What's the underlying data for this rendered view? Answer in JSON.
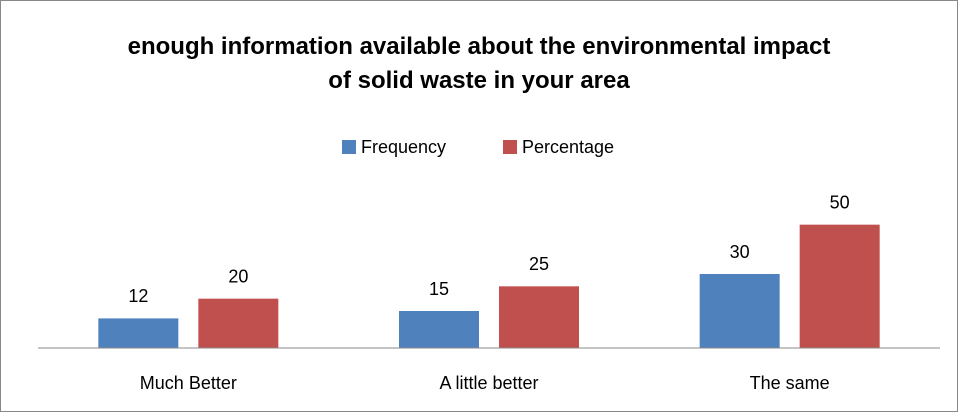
{
  "chart_data": {
    "type": "bar",
    "title": "enough information available about the environmental impact of solid waste in your area",
    "categories": [
      "Much Better",
      "A little better",
      "The same"
    ],
    "series": [
      {
        "name": "Frequency",
        "color": "#4f81bd",
        "values": [
          12,
          15,
          30
        ]
      },
      {
        "name": "Percentage",
        "color": "#c0504d",
        "values": [
          20,
          25,
          50
        ]
      }
    ],
    "ylim": [
      0,
      60
    ],
    "legend": "top",
    "grid": false
  }
}
